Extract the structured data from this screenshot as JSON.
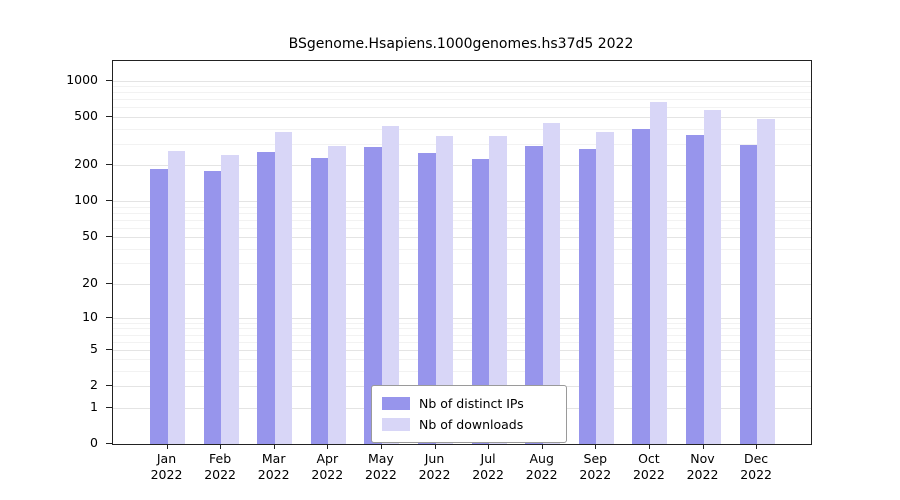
{
  "chart_data": {
    "type": "bar",
    "title": "BSgenome.Hsapiens.1000genomes.hs37d5 2022",
    "year": "2022",
    "categories": [
      "Jan",
      "Feb",
      "Mar",
      "Apr",
      "May",
      "Jun",
      "Jul",
      "Aug",
      "Sep",
      "Oct",
      "Nov",
      "Dec"
    ],
    "series": [
      {
        "name": "Nb of distinct IPs",
        "color": "#9795ec",
        "values": [
          185,
          178,
          255,
          230,
          280,
          250,
          225,
          285,
          270,
          400,
          355,
          295
        ]
      },
      {
        "name": "Nb of downloads",
        "color": "#d8d6f7",
        "values": [
          260,
          240,
          375,
          290,
          425,
          350,
          345,
          450,
          375,
          660,
          575,
          480
        ]
      }
    ],
    "ylabel": "",
    "xlabel": "",
    "scale": "log1p",
    "y_ticks": [
      0,
      1,
      2,
      5,
      10,
      20,
      50,
      100,
      200,
      500,
      1000
    ],
    "y_minor_ticks": [
      3,
      4,
      6,
      7,
      8,
      9,
      30,
      40,
      60,
      70,
      80,
      90,
      300,
      400,
      600,
      700,
      800,
      900
    ],
    "axis_max": 1450,
    "grid": true,
    "legend_position": "bottom-center"
  }
}
